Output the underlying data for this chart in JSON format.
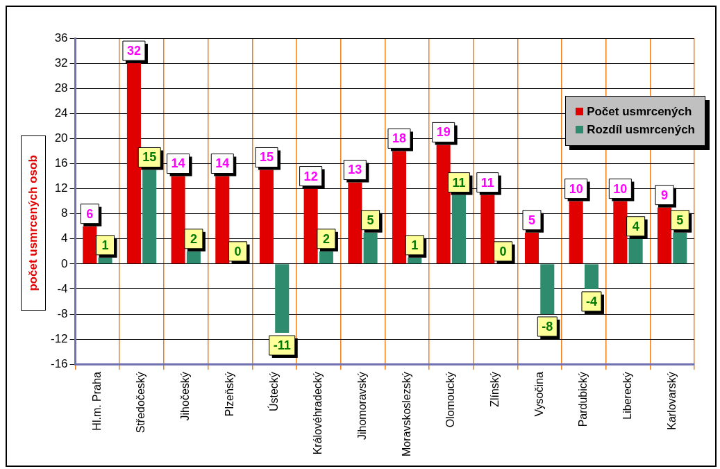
{
  "chart_data": {
    "type": "bar",
    "ylabel": "počet usmrcených osob",
    "categories": [
      "Hl.m. Praha",
      "Středočeský",
      "Jihočeský",
      "Plzeňský",
      "Ústecký",
      "Královéhradecký",
      "Jihomoravský",
      "Moravskoslezský",
      "Olomoucký",
      "Zlínský",
      "Vysočina",
      "Pardubický",
      "Liberecký",
      "Karlovarský"
    ],
    "series": [
      {
        "name": "Počet usmrcených",
        "color": "#e00000",
        "values": [
          6,
          32,
          14,
          14,
          15,
          12,
          13,
          18,
          19,
          11,
          5,
          10,
          10,
          9
        ]
      },
      {
        "name": "Rozdíl usmrcených",
        "color": "#2e8b6e",
        "values": [
          1,
          15,
          2,
          0,
          -11,
          2,
          5,
          1,
          11,
          0,
          -8,
          -4,
          4,
          5
        ]
      }
    ],
    "ylim": [
      -16,
      36
    ],
    "yticks": [
      -16,
      -12,
      -8,
      -4,
      0,
      4,
      8,
      12,
      16,
      20,
      24,
      28,
      32,
      36
    ],
    "grid": true,
    "legend": "top right",
    "data_labels": true
  }
}
